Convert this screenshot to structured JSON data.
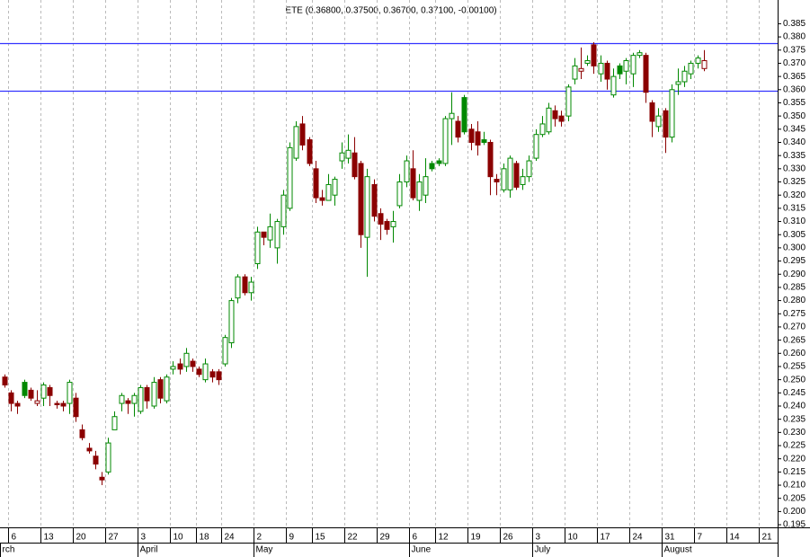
{
  "chart_data": {
    "type": "candlestick",
    "title": "ETE (0.36800, 0.37500, 0.36700, 0.37100, -0.00100)",
    "up_color": "#008800",
    "down_color": "#8b0000",
    "line_color": "#3333ff",
    "hlines": [
      0.3775,
      0.3595
    ],
    "open": [
      0.251,
      0.245,
      0.241,
      0.249,
      0.246,
      0.241,
      0.243,
      0.247,
      0.241,
      0.241,
      0.241,
      0.243,
      0.231,
      0.224,
      0.221,
      0.213,
      0.215,
      0.231,
      0.241,
      0.242,
      0.241,
      0.238,
      0.247,
      0.24,
      0.25,
      0.242,
      0.254,
      0.256,
      0.255,
      0.257,
      0.254,
      0.25,
      0.253,
      0.253,
      0.256,
      0.264,
      0.281,
      0.289,
      0.283,
      0.294,
      0.306,
      0.303,
      0.3,
      0.308,
      0.315,
      0.334,
      0.347,
      0.341,
      0.33,
      0.319,
      0.318,
      0.32,
      0.333,
      0.334,
      0.336,
      0.332,
      0.304,
      0.324,
      0.313,
      0.31,
      0.308,
      0.316,
      0.325,
      0.33,
      0.318,
      0.32,
      0.332,
      0.333,
      0.332,
      0.349,
      0.348,
      0.357,
      0.345,
      0.344,
      0.341,
      0.34,
      0.326,
      0.322,
      0.322,
      0.332,
      0.324,
      0.327,
      0.334,
      0.343,
      0.344,
      0.352,
      0.35,
      0.35,
      0.364,
      0.367,
      0.37,
      0.377,
      0.366,
      0.37,
      0.358,
      0.369,
      0.367,
      0.366,
      0.373,
      0.373,
      0.355,
      0.346,
      0.352,
      0.342,
      0.362,
      0.363,
      0.366,
      0.37,
      0.368
    ],
    "high": [
      0.252,
      0.246,
      0.242,
      0.25,
      0.247,
      0.246,
      0.249,
      0.248,
      0.242,
      0.242,
      0.25,
      0.245,
      0.233,
      0.226,
      0.223,
      0.215,
      0.228,
      0.238,
      0.245,
      0.243,
      0.245,
      0.248,
      0.248,
      0.251,
      0.251,
      0.252,
      0.257,
      0.258,
      0.262,
      0.258,
      0.255,
      0.258,
      0.254,
      0.254,
      0.267,
      0.281,
      0.29,
      0.29,
      0.289,
      0.308,
      0.306,
      0.313,
      0.311,
      0.322,
      0.34,
      0.348,
      0.35,
      0.342,
      0.333,
      0.322,
      0.328,
      0.327,
      0.34,
      0.343,
      0.342,
      0.333,
      0.33,
      0.326,
      0.315,
      0.311,
      0.314,
      0.328,
      0.335,
      0.337,
      0.328,
      0.334,
      0.333,
      0.334,
      0.35,
      0.359,
      0.35,
      0.358,
      0.347,
      0.348,
      0.344,
      0.341,
      0.328,
      0.332,
      0.335,
      0.333,
      0.33,
      0.335,
      0.345,
      0.35,
      0.355,
      0.354,
      0.352,
      0.362,
      0.372,
      0.376,
      0.373,
      0.378,
      0.373,
      0.371,
      0.368,
      0.37,
      0.372,
      0.374,
      0.375,
      0.374,
      0.356,
      0.353,
      0.353,
      0.362,
      0.368,
      0.369,
      0.371,
      0.373,
      0.375
    ],
    "low": [
      0.247,
      0.238,
      0.237,
      0.243,
      0.242,
      0.24,
      0.24,
      0.24,
      0.239,
      0.238,
      0.237,
      0.234,
      0.227,
      0.222,
      0.216,
      0.21,
      0.214,
      0.231,
      0.238,
      0.237,
      0.236,
      0.237,
      0.239,
      0.239,
      0.241,
      0.241,
      0.252,
      0.252,
      0.253,
      0.253,
      0.251,
      0.249,
      0.249,
      0.248,
      0.255,
      0.262,
      0.279,
      0.282,
      0.28,
      0.292,
      0.301,
      0.3,
      0.294,
      0.305,
      0.314,
      0.333,
      0.337,
      0.331,
      0.317,
      0.316,
      0.318,
      0.316,
      0.33,
      0.332,
      0.326,
      0.3,
      0.289,
      0.31,
      0.303,
      0.305,
      0.302,
      0.315,
      0.323,
      0.318,
      0.314,
      0.317,
      0.329,
      0.331,
      0.331,
      0.339,
      0.34,
      0.343,
      0.337,
      0.335,
      0.339,
      0.32,
      0.32,
      0.321,
      0.319,
      0.322,
      0.322,
      0.325,
      0.333,
      0.342,
      0.343,
      0.346,
      0.346,
      0.348,
      0.362,
      0.364,
      0.369,
      0.366,
      0.363,
      0.36,
      0.357,
      0.364,
      0.362,
      0.361,
      0.372,
      0.355,
      0.342,
      0.344,
      0.336,
      0.34,
      0.358,
      0.361,
      0.364,
      0.368,
      0.367
    ],
    "close": [
      0.248,
      0.241,
      0.24,
      0.244,
      0.243,
      0.242,
      0.248,
      0.244,
      0.2405,
      0.24,
      0.249,
      0.236,
      0.228,
      0.223,
      0.218,
      0.212,
      0.226,
      0.236,
      0.244,
      0.241,
      0.244,
      0.247,
      0.242,
      0.249,
      0.243,
      0.251,
      0.255,
      0.254,
      0.26,
      0.255,
      0.252,
      0.256,
      0.251,
      0.25,
      0.266,
      0.28,
      0.289,
      0.283,
      0.287,
      0.306,
      0.304,
      0.308,
      0.31,
      0.32,
      0.338,
      0.346,
      0.339,
      0.332,
      0.319,
      0.318,
      0.324,
      0.326,
      0.336,
      0.337,
      0.327,
      0.305,
      0.327,
      0.312,
      0.309,
      0.307,
      0.31,
      0.325,
      0.333,
      0.319,
      0.325,
      0.327,
      0.33,
      0.332,
      0.349,
      0.351,
      0.342,
      0.344,
      0.34,
      0.339,
      0.34,
      0.327,
      0.325,
      0.33,
      0.334,
      0.323,
      0.327,
      0.333,
      0.343,
      0.347,
      0.353,
      0.349,
      0.348,
      0.361,
      0.369,
      0.368,
      0.371,
      0.369,
      0.37,
      0.364,
      0.365,
      0.366,
      0.371,
      0.373,
      0.374,
      0.359,
      0.348,
      0.35,
      0.342,
      0.36,
      0.363,
      0.367,
      0.37,
      0.372,
      0.371
    ],
    "xlim": [
      -0.7,
      119.4
    ],
    "xticks": [
      {
        "value": 0.5,
        "label": "6"
      },
      {
        "value": 5.5,
        "label": "13"
      },
      {
        "value": 10.5,
        "label": "20"
      },
      {
        "value": 15.5,
        "label": "27"
      },
      {
        "value": 20.5,
        "label": "3"
      },
      {
        "value": 25.5,
        "label": "10"
      },
      {
        "value": 29.5,
        "label": "18"
      },
      {
        "value": 33.5,
        "label": "24"
      },
      {
        "value": 38.5,
        "label": "2"
      },
      {
        "value": 43.5,
        "label": "9"
      },
      {
        "value": 47.5,
        "label": "15"
      },
      {
        "value": 52.5,
        "label": "22"
      },
      {
        "value": 57.5,
        "label": "29"
      },
      {
        "value": 62.5,
        "label": "6"
      },
      {
        "value": 66.5,
        "label": "12"
      },
      {
        "value": 71.5,
        "label": "19"
      },
      {
        "value": 76.5,
        "label": "26"
      },
      {
        "value": 81.5,
        "label": "3"
      },
      {
        "value": 86.5,
        "label": "10"
      },
      {
        "value": 91.5,
        "label": "17"
      },
      {
        "value": 96.5,
        "label": "24"
      },
      {
        "value": 101.5,
        "label": "31"
      },
      {
        "value": 106.5,
        "label": "7"
      },
      {
        "value": 111.5,
        "label": "14"
      },
      {
        "value": 116.5,
        "label": "21"
      }
    ],
    "months": [
      {
        "value": -0.7,
        "label": "rch"
      },
      {
        "value": 20.5,
        "label": "April"
      },
      {
        "value": 38.5,
        "label": "May"
      },
      {
        "value": 62.5,
        "label": "June"
      },
      {
        "value": 81.5,
        "label": "July"
      },
      {
        "value": 101.5,
        "label": "August"
      }
    ],
    "ylim": [
      0.194,
      0.394
    ],
    "yticks": [
      {
        "value": 0.195,
        "label": "0.195"
      },
      {
        "value": 0.2,
        "label": "0.200"
      },
      {
        "value": 0.205,
        "label": "0.205"
      },
      {
        "value": 0.21,
        "label": "0.210"
      },
      {
        "value": 0.215,
        "label": "0.215"
      },
      {
        "value": 0.22,
        "label": "0.220"
      },
      {
        "value": 0.225,
        "label": "0.225"
      },
      {
        "value": 0.23,
        "label": "0.230"
      },
      {
        "value": 0.235,
        "label": "0.235"
      },
      {
        "value": 0.24,
        "label": "0.240"
      },
      {
        "value": 0.245,
        "label": "0.245"
      },
      {
        "value": 0.25,
        "label": "0.250"
      },
      {
        "value": 0.255,
        "label": "0.255"
      },
      {
        "value": 0.26,
        "label": "0.260"
      },
      {
        "value": 0.265,
        "label": "0.265"
      },
      {
        "value": 0.27,
        "label": "0.270"
      },
      {
        "value": 0.275,
        "label": "0.275"
      },
      {
        "value": 0.28,
        "label": "0.280"
      },
      {
        "value": 0.285,
        "label": "0.285"
      },
      {
        "value": 0.29,
        "label": "0.290"
      },
      {
        "value": 0.295,
        "label": "0.295"
      },
      {
        "value": 0.3,
        "label": "0.300"
      },
      {
        "value": 0.305,
        "label": "0.305"
      },
      {
        "value": 0.31,
        "label": "0.310"
      },
      {
        "value": 0.315,
        "label": "0.315"
      },
      {
        "value": 0.32,
        "label": "0.320"
      },
      {
        "value": 0.325,
        "label": "0.325"
      },
      {
        "value": 0.33,
        "label": "0.330"
      },
      {
        "value": 0.335,
        "label": "0.335"
      },
      {
        "value": 0.34,
        "label": "0.340"
      },
      {
        "value": 0.345,
        "label": "0.345"
      },
      {
        "value": 0.35,
        "label": "0.350"
      },
      {
        "value": 0.355,
        "label": "0.355"
      },
      {
        "value": 0.36,
        "label": "0.360"
      },
      {
        "value": 0.365,
        "label": "0.365"
      },
      {
        "value": 0.37,
        "label": "0.370"
      },
      {
        "value": 0.375,
        "label": "0.375"
      },
      {
        "value": 0.38,
        "label": "0.380"
      },
      {
        "value": 0.385,
        "label": "0.385"
      }
    ],
    "grid": true
  }
}
